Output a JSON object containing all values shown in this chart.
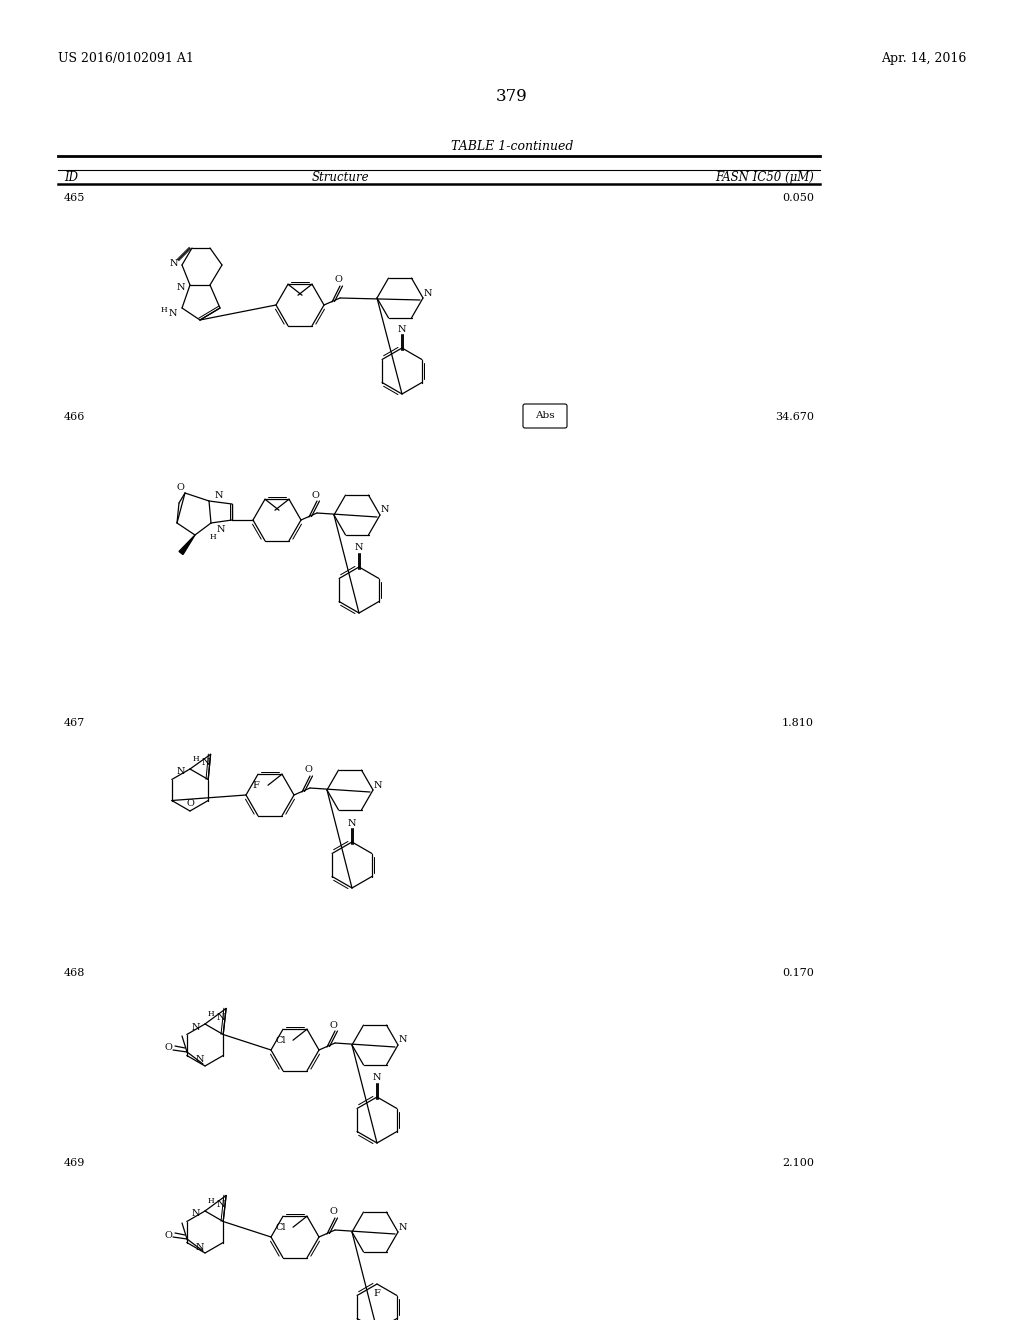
{
  "page_number": "379",
  "patent_number": "US 2016/0102091 A1",
  "patent_date": "Apr. 14, 2016",
  "table_title": "TABLE 1-continued",
  "col_id": "ID",
  "col_struct": "Structure",
  "col_ic50": "FASN IC50 (μM)",
  "background_color": "#ffffff",
  "rows": [
    {
      "id": "465",
      "ic50": "0.050"
    },
    {
      "id": "466",
      "ic50": "34.670",
      "abs": true
    },
    {
      "id": "467",
      "ic50": "1.810"
    },
    {
      "id": "468",
      "ic50": "0.170"
    },
    {
      "id": "469",
      "ic50": "2.100"
    }
  ]
}
